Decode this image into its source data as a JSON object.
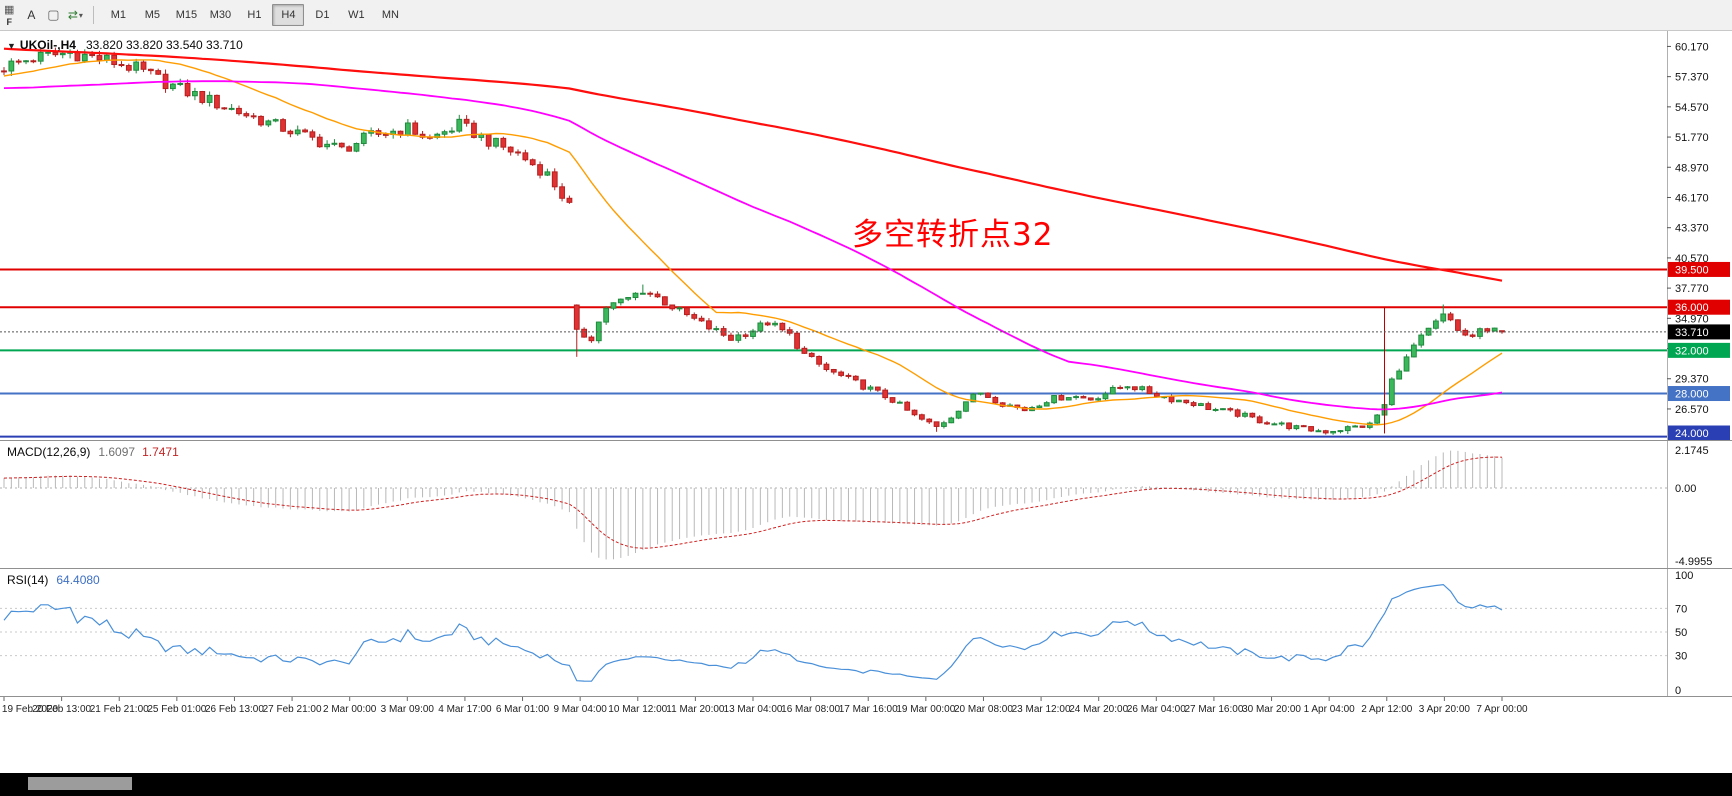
{
  "toolbar": {
    "icons": [
      {
        "name": "chart-grid-icon",
        "glyph": "▦"
      },
      {
        "name": "cursor-a-icon",
        "glyph": "A"
      },
      {
        "name": "textbox-tool-icon",
        "glyph": "▢"
      },
      {
        "name": "auto-scroll-icon",
        "glyph": "⇄"
      },
      {
        "name": "dropdown-caret-icon",
        "glyph": "▾"
      },
      {
        "name": "f-key-icon",
        "glyph": "F"
      }
    ],
    "timeframes": [
      "M1",
      "M5",
      "M15",
      "M30",
      "H1",
      "H4",
      "D1",
      "W1",
      "MN"
    ],
    "active_timeframe": "H4"
  },
  "header": {
    "collapse_glyph": "▼",
    "symbol": "UKOil-,H4",
    "ohlc_text": "33.820 33.820 33.540 33.710"
  },
  "annotation": {
    "text": "多空转折点32",
    "color": "#ff0000"
  },
  "macd_header": {
    "label": "MACD(12,26,9)",
    "value_main": "1.6097",
    "value_signal": "1.7471"
  },
  "rsi_header": {
    "label": "RSI(14)",
    "value": "64.4080"
  },
  "chart_data": {
    "main": {
      "type": "candlestick",
      "symbol": "UKOil-",
      "timeframe": "H4",
      "bars_visible": 205,
      "last_bar": {
        "open": 33.82,
        "high": 33.82,
        "low": 33.54,
        "close": 33.71
      },
      "price_axis": {
        "range": [
          23.6,
          61.6
        ],
        "ticks": [
          60.17,
          57.37,
          54.57,
          51.77,
          48.97,
          46.17,
          43.37,
          40.57,
          37.77,
          34.97,
          32.17,
          29.37,
          26.57
        ]
      },
      "levels": [
        {
          "price": 39.5,
          "label": "39.500",
          "color": "#e00000",
          "width": 2
        },
        {
          "price": 36.0,
          "label": "36.000",
          "color": "#e00000",
          "width": 2
        },
        {
          "price": 32.0,
          "label": "32.000",
          "color": "#00a651",
          "width": 2
        },
        {
          "price": 28.0,
          "label": "28.000",
          "color": "#4472c4",
          "width": 2
        },
        {
          "price": 24.0,
          "label": "24.000",
          "color": "#2b3fb5",
          "width": 2
        }
      ],
      "current_price": {
        "value": 33.71,
        "label": "33.710"
      },
      "moving_averages": [
        {
          "name": "MA-fast",
          "period": 20,
          "color": "#ff9d00",
          "width": 1.4
        },
        {
          "name": "MA-mid",
          "period": 68,
          "color": "#ff00ff",
          "width": 1.8
        },
        {
          "name": "MA-slow",
          "period": 200,
          "color": "#ff0e0e",
          "width": 2.2
        }
      ],
      "vertical_line": {
        "bar": 188,
        "from": 36.0,
        "to": 24.3,
        "color": "#c00000"
      },
      "gap_opens": [
        [
          78,
          36.2
        ]
      ],
      "close_anchors": [
        [
          -200,
          66.0
        ],
        [
          -160,
          63.5
        ],
        [
          -120,
          61.0
        ],
        [
          -80,
          58.5
        ],
        [
          -55,
          57.0
        ],
        [
          -42,
          55.2
        ],
        [
          -30,
          54.4
        ],
        [
          -18,
          56.2
        ],
        [
          -8,
          57.6
        ],
        [
          0,
          58.3
        ],
        [
          4,
          59.1
        ],
        [
          9,
          59.6
        ],
        [
          14,
          58.9
        ],
        [
          18,
          58.1
        ],
        [
          24,
          56.2
        ],
        [
          30,
          54.6
        ],
        [
          36,
          53.1
        ],
        [
          42,
          51.6
        ],
        [
          46,
          50.6
        ],
        [
          50,
          51.9
        ],
        [
          55,
          52.6
        ],
        [
          58,
          51.6
        ],
        [
          62,
          52.9
        ],
        [
          66,
          51.4
        ],
        [
          70,
          50.2
        ],
        [
          74,
          48.3
        ],
        [
          77,
          45.4
        ],
        [
          78,
          33.6
        ],
        [
          80,
          33.2
        ],
        [
          82,
          36.0
        ],
        [
          85,
          36.8
        ],
        [
          87,
          37.6
        ],
        [
          89,
          36.9
        ],
        [
          92,
          35.6
        ],
        [
          96,
          34.1
        ],
        [
          99,
          33.1
        ],
        [
          102,
          33.9
        ],
        [
          104,
          34.6
        ],
        [
          107,
          33.4
        ],
        [
          109,
          31.6
        ],
        [
          112,
          30.2
        ],
        [
          115,
          29.3
        ],
        [
          118,
          28.4
        ],
        [
          121,
          27.4
        ],
        [
          124,
          25.9
        ],
        [
          127,
          24.9
        ],
        [
          129,
          25.9
        ],
        [
          131,
          27.3
        ],
        [
          133,
          28.1
        ],
        [
          136,
          27.1
        ],
        [
          139,
          26.5
        ],
        [
          142,
          27.4
        ],
        [
          145,
          27.8
        ],
        [
          148,
          27.5
        ],
        [
          151,
          28.3
        ],
        [
          153,
          28.8
        ],
        [
          156,
          28.1
        ],
        [
          159,
          27.5
        ],
        [
          162,
          27.1
        ],
        [
          165,
          26.5
        ],
        [
          168,
          26.1
        ],
        [
          171,
          25.5
        ],
        [
          174,
          25.1
        ],
        [
          177,
          24.7
        ],
        [
          180,
          24.5
        ],
        [
          183,
          24.8
        ],
        [
          186,
          25.1
        ],
        [
          188,
          26.9
        ],
        [
          189,
          29.2
        ],
        [
          190,
          30.4
        ],
        [
          191,
          31.2
        ],
        [
          192,
          32.4
        ],
        [
          194,
          33.8
        ],
        [
          196,
          35.2
        ],
        [
          197,
          34.6
        ],
        [
          198,
          33.8
        ],
        [
          200,
          33.2
        ],
        [
          201,
          34.0
        ],
        [
          202,
          33.5
        ],
        [
          203,
          33.9
        ],
        [
          204,
          33.71
        ]
      ],
      "wick_low_extremes": [
        [
          78,
          31.4
        ],
        [
          127,
          24.45
        ],
        [
          183,
          24.25
        ]
      ],
      "wick_high_extremes": [
        [
          9,
          59.9
        ],
        [
          87,
          38.1
        ],
        [
          196,
          36.25
        ]
      ]
    },
    "time_axis_labels": [
      "19 Feb 2020",
      "20 Feb 13:00",
      "21 Feb 21:00",
      "25 Feb 01:00",
      "26 Feb 13:00",
      "27 Feb 21:00",
      "2 Mar 00:00",
      "3 Mar 09:00",
      "4 Mar 17:00",
      "6 Mar 01:00",
      "9 Mar 04:00",
      "10 Mar 12:00",
      "11 Mar 20:00",
      "13 Mar 04:00",
      "16 Mar 08:00",
      "17 Mar 16:00",
      "19 Mar 00:00",
      "20 Mar 08:00",
      "23 Mar 12:00",
      "24 Mar 20:00",
      "26 Mar 04:00",
      "27 Mar 16:00",
      "30 Mar 20:00",
      "1 Apr 04:00",
      "2 Apr 12:00",
      "3 Apr 20:00",
      "7 Apr 00:00"
    ],
    "macd": {
      "type": "bar+line",
      "label": "MACD(12,26,9)",
      "fast": 12,
      "slow": 26,
      "signal": 9,
      "current_values": [
        1.6097,
        1.7471
      ],
      "hist_color": "#b8b8b8",
      "signal_color": "#d22020",
      "axis_labels": [
        "2.1745",
        "0.00",
        "-4.9955"
      ]
    },
    "rsi": {
      "type": "line",
      "label": "RSI(14)",
      "period": 14,
      "current_value": 64.408,
      "color": "#4a90d9",
      "axis_labels": [
        100,
        70,
        50,
        30,
        0
      ],
      "level_lines": [
        70,
        50,
        30
      ]
    }
  }
}
